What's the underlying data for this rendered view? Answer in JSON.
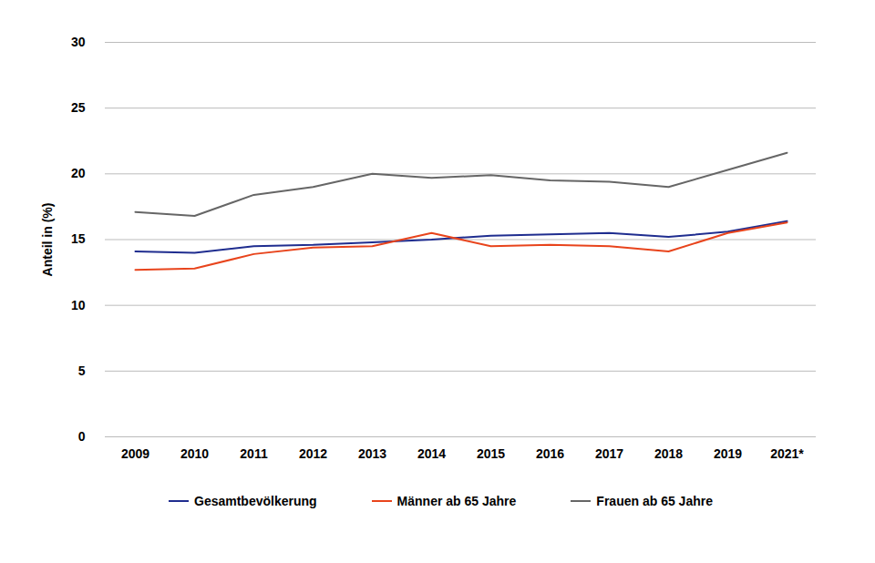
{
  "chart_data": {
    "type": "line",
    "y_label": "Anteil in (%)",
    "x": [
      "2009",
      "2010",
      "2011",
      "2012",
      "2013",
      "2014",
      "2015",
      "2016",
      "2017",
      "2018",
      "2019",
      "2021*"
    ],
    "series": [
      {
        "name": "Gesamtbevölkerung",
        "color": "#1f2d8f",
        "values": [
          14.1,
          14.0,
          14.5,
          14.6,
          14.8,
          15.0,
          15.3,
          15.4,
          15.5,
          15.2,
          15.6,
          16.4
        ]
      },
      {
        "name": "Männer ab 65 Jahre",
        "color": "#e8441c",
        "values": [
          12.7,
          12.8,
          13.9,
          14.4,
          14.5,
          15.5,
          14.5,
          14.6,
          14.5,
          14.1,
          15.5,
          16.3
        ]
      },
      {
        "name": "Frauen ab 65 Jahre",
        "color": "#666666",
        "values": [
          17.1,
          16.8,
          18.4,
          19.0,
          20.0,
          19.7,
          19.9,
          19.5,
          19.4,
          19.0,
          20.3,
          21.6
        ]
      }
    ],
    "ylim": [
      0,
      30
    ],
    "yticks": [
      0,
      5,
      10,
      15,
      20,
      25,
      30
    ],
    "grid": true,
    "legend": "bottom"
  }
}
